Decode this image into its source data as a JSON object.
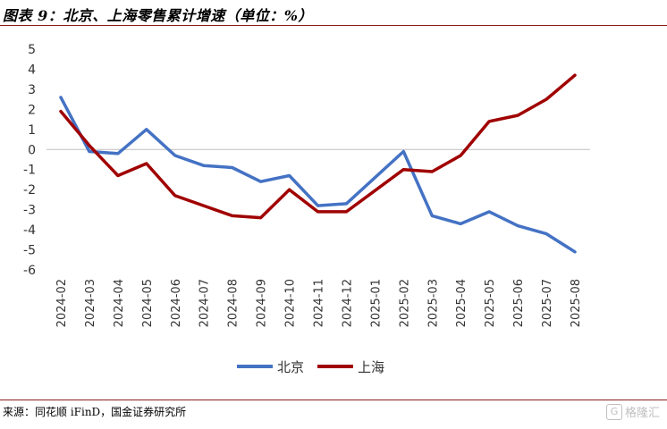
{
  "figure": {
    "title": "图表 9：北京、上海零售累计增速（单位：%）",
    "source": "来源：同花顺 iFinD，国金证券研究所",
    "watermark": "格隆汇"
  },
  "chart_data": {
    "type": "line",
    "title": "",
    "xlabel": "",
    "ylabel": "",
    "ylim": [
      -6,
      5
    ],
    "yticks": [
      5,
      4,
      3,
      2,
      1,
      0,
      -1,
      -2,
      -3,
      -4,
      -5,
      -6
    ],
    "grid": false,
    "legend_position": "bottom",
    "categories": [
      "2024-02",
      "2024-03",
      "2024-04",
      "2024-05",
      "2024-06",
      "2024-07",
      "2024-08",
      "2024-09",
      "2024-10",
      "2024-11",
      "2024-12",
      "2025-01",
      "2025-02",
      "2025-03",
      "2025-04",
      "2025-05",
      "2025-06",
      "2025-07",
      "2025-08"
    ],
    "series": [
      {
        "name": "北京",
        "color": "#4472c4",
        "values": [
          2.6,
          -0.1,
          -0.2,
          1.0,
          -0.3,
          -0.8,
          -0.9,
          -1.6,
          -1.3,
          -2.8,
          -2.7,
          null,
          -0.1,
          -3.3,
          -3.7,
          -3.1,
          -3.8,
          -4.2,
          -5.1
        ]
      },
      {
        "name": "上海",
        "color": "#a00000",
        "values": [
          1.9,
          0.2,
          -1.3,
          -0.7,
          -2.3,
          -2.8,
          -3.3,
          -3.4,
          -2.0,
          -3.1,
          -3.1,
          null,
          -1.0,
          -1.1,
          -0.3,
          1.4,
          1.7,
          2.5,
          3.7
        ]
      }
    ]
  }
}
